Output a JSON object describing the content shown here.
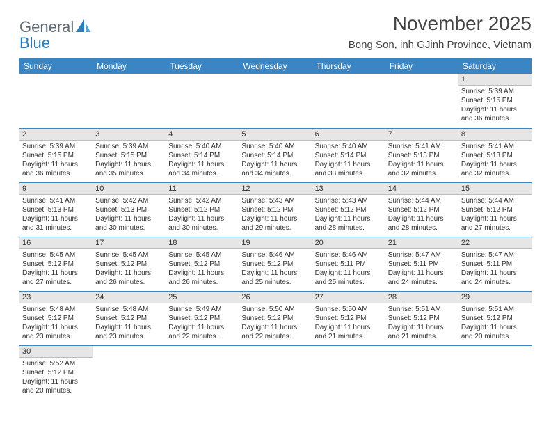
{
  "logo": {
    "general": "General",
    "blue": "Blue"
  },
  "title": "November 2025",
  "location": "Bong Son, inh GJinh Province, Vietnam",
  "colors": {
    "header_bg": "#3a86c5",
    "header_text": "#ffffff",
    "daynum_bg": "#e6e6e6",
    "daynum_border": "#bdbdbd",
    "week_border": "#3a86c5",
    "logo_gray": "#5f6a72",
    "logo_blue": "#2a7db8"
  },
  "weekdays": [
    "Sunday",
    "Monday",
    "Tuesday",
    "Wednesday",
    "Thursday",
    "Friday",
    "Saturday"
  ],
  "weeks": [
    [
      null,
      null,
      null,
      null,
      null,
      null,
      {
        "n": "1",
        "sr": "Sunrise: 5:39 AM",
        "ss": "Sunset: 5:15 PM",
        "d1": "Daylight: 11 hours",
        "d2": "and 36 minutes."
      }
    ],
    [
      {
        "n": "2",
        "sr": "Sunrise: 5:39 AM",
        "ss": "Sunset: 5:15 PM",
        "d1": "Daylight: 11 hours",
        "d2": "and 36 minutes."
      },
      {
        "n": "3",
        "sr": "Sunrise: 5:39 AM",
        "ss": "Sunset: 5:15 PM",
        "d1": "Daylight: 11 hours",
        "d2": "and 35 minutes."
      },
      {
        "n": "4",
        "sr": "Sunrise: 5:40 AM",
        "ss": "Sunset: 5:14 PM",
        "d1": "Daylight: 11 hours",
        "d2": "and 34 minutes."
      },
      {
        "n": "5",
        "sr": "Sunrise: 5:40 AM",
        "ss": "Sunset: 5:14 PM",
        "d1": "Daylight: 11 hours",
        "d2": "and 34 minutes."
      },
      {
        "n": "6",
        "sr": "Sunrise: 5:40 AM",
        "ss": "Sunset: 5:14 PM",
        "d1": "Daylight: 11 hours",
        "d2": "and 33 minutes."
      },
      {
        "n": "7",
        "sr": "Sunrise: 5:41 AM",
        "ss": "Sunset: 5:13 PM",
        "d1": "Daylight: 11 hours",
        "d2": "and 32 minutes."
      },
      {
        "n": "8",
        "sr": "Sunrise: 5:41 AM",
        "ss": "Sunset: 5:13 PM",
        "d1": "Daylight: 11 hours",
        "d2": "and 32 minutes."
      }
    ],
    [
      {
        "n": "9",
        "sr": "Sunrise: 5:41 AM",
        "ss": "Sunset: 5:13 PM",
        "d1": "Daylight: 11 hours",
        "d2": "and 31 minutes."
      },
      {
        "n": "10",
        "sr": "Sunrise: 5:42 AM",
        "ss": "Sunset: 5:13 PM",
        "d1": "Daylight: 11 hours",
        "d2": "and 30 minutes."
      },
      {
        "n": "11",
        "sr": "Sunrise: 5:42 AM",
        "ss": "Sunset: 5:12 PM",
        "d1": "Daylight: 11 hours",
        "d2": "and 30 minutes."
      },
      {
        "n": "12",
        "sr": "Sunrise: 5:43 AM",
        "ss": "Sunset: 5:12 PM",
        "d1": "Daylight: 11 hours",
        "d2": "and 29 minutes."
      },
      {
        "n": "13",
        "sr": "Sunrise: 5:43 AM",
        "ss": "Sunset: 5:12 PM",
        "d1": "Daylight: 11 hours",
        "d2": "and 28 minutes."
      },
      {
        "n": "14",
        "sr": "Sunrise: 5:44 AM",
        "ss": "Sunset: 5:12 PM",
        "d1": "Daylight: 11 hours",
        "d2": "and 28 minutes."
      },
      {
        "n": "15",
        "sr": "Sunrise: 5:44 AM",
        "ss": "Sunset: 5:12 PM",
        "d1": "Daylight: 11 hours",
        "d2": "and 27 minutes."
      }
    ],
    [
      {
        "n": "16",
        "sr": "Sunrise: 5:45 AM",
        "ss": "Sunset: 5:12 PM",
        "d1": "Daylight: 11 hours",
        "d2": "and 27 minutes."
      },
      {
        "n": "17",
        "sr": "Sunrise: 5:45 AM",
        "ss": "Sunset: 5:12 PM",
        "d1": "Daylight: 11 hours",
        "d2": "and 26 minutes."
      },
      {
        "n": "18",
        "sr": "Sunrise: 5:45 AM",
        "ss": "Sunset: 5:12 PM",
        "d1": "Daylight: 11 hours",
        "d2": "and 26 minutes."
      },
      {
        "n": "19",
        "sr": "Sunrise: 5:46 AM",
        "ss": "Sunset: 5:12 PM",
        "d1": "Daylight: 11 hours",
        "d2": "and 25 minutes."
      },
      {
        "n": "20",
        "sr": "Sunrise: 5:46 AM",
        "ss": "Sunset: 5:11 PM",
        "d1": "Daylight: 11 hours",
        "d2": "and 25 minutes."
      },
      {
        "n": "21",
        "sr": "Sunrise: 5:47 AM",
        "ss": "Sunset: 5:11 PM",
        "d1": "Daylight: 11 hours",
        "d2": "and 24 minutes."
      },
      {
        "n": "22",
        "sr": "Sunrise: 5:47 AM",
        "ss": "Sunset: 5:11 PM",
        "d1": "Daylight: 11 hours",
        "d2": "and 24 minutes."
      }
    ],
    [
      {
        "n": "23",
        "sr": "Sunrise: 5:48 AM",
        "ss": "Sunset: 5:12 PM",
        "d1": "Daylight: 11 hours",
        "d2": "and 23 minutes."
      },
      {
        "n": "24",
        "sr": "Sunrise: 5:48 AM",
        "ss": "Sunset: 5:12 PM",
        "d1": "Daylight: 11 hours",
        "d2": "and 23 minutes."
      },
      {
        "n": "25",
        "sr": "Sunrise: 5:49 AM",
        "ss": "Sunset: 5:12 PM",
        "d1": "Daylight: 11 hours",
        "d2": "and 22 minutes."
      },
      {
        "n": "26",
        "sr": "Sunrise: 5:50 AM",
        "ss": "Sunset: 5:12 PM",
        "d1": "Daylight: 11 hours",
        "d2": "and 22 minutes."
      },
      {
        "n": "27",
        "sr": "Sunrise: 5:50 AM",
        "ss": "Sunset: 5:12 PM",
        "d1": "Daylight: 11 hours",
        "d2": "and 21 minutes."
      },
      {
        "n": "28",
        "sr": "Sunrise: 5:51 AM",
        "ss": "Sunset: 5:12 PM",
        "d1": "Daylight: 11 hours",
        "d2": "and 21 minutes."
      },
      {
        "n": "29",
        "sr": "Sunrise: 5:51 AM",
        "ss": "Sunset: 5:12 PM",
        "d1": "Daylight: 11 hours",
        "d2": "and 20 minutes."
      }
    ],
    [
      {
        "n": "30",
        "sr": "Sunrise: 5:52 AM",
        "ss": "Sunset: 5:12 PM",
        "d1": "Daylight: 11 hours",
        "d2": "and 20 minutes."
      },
      null,
      null,
      null,
      null,
      null,
      null
    ]
  ]
}
